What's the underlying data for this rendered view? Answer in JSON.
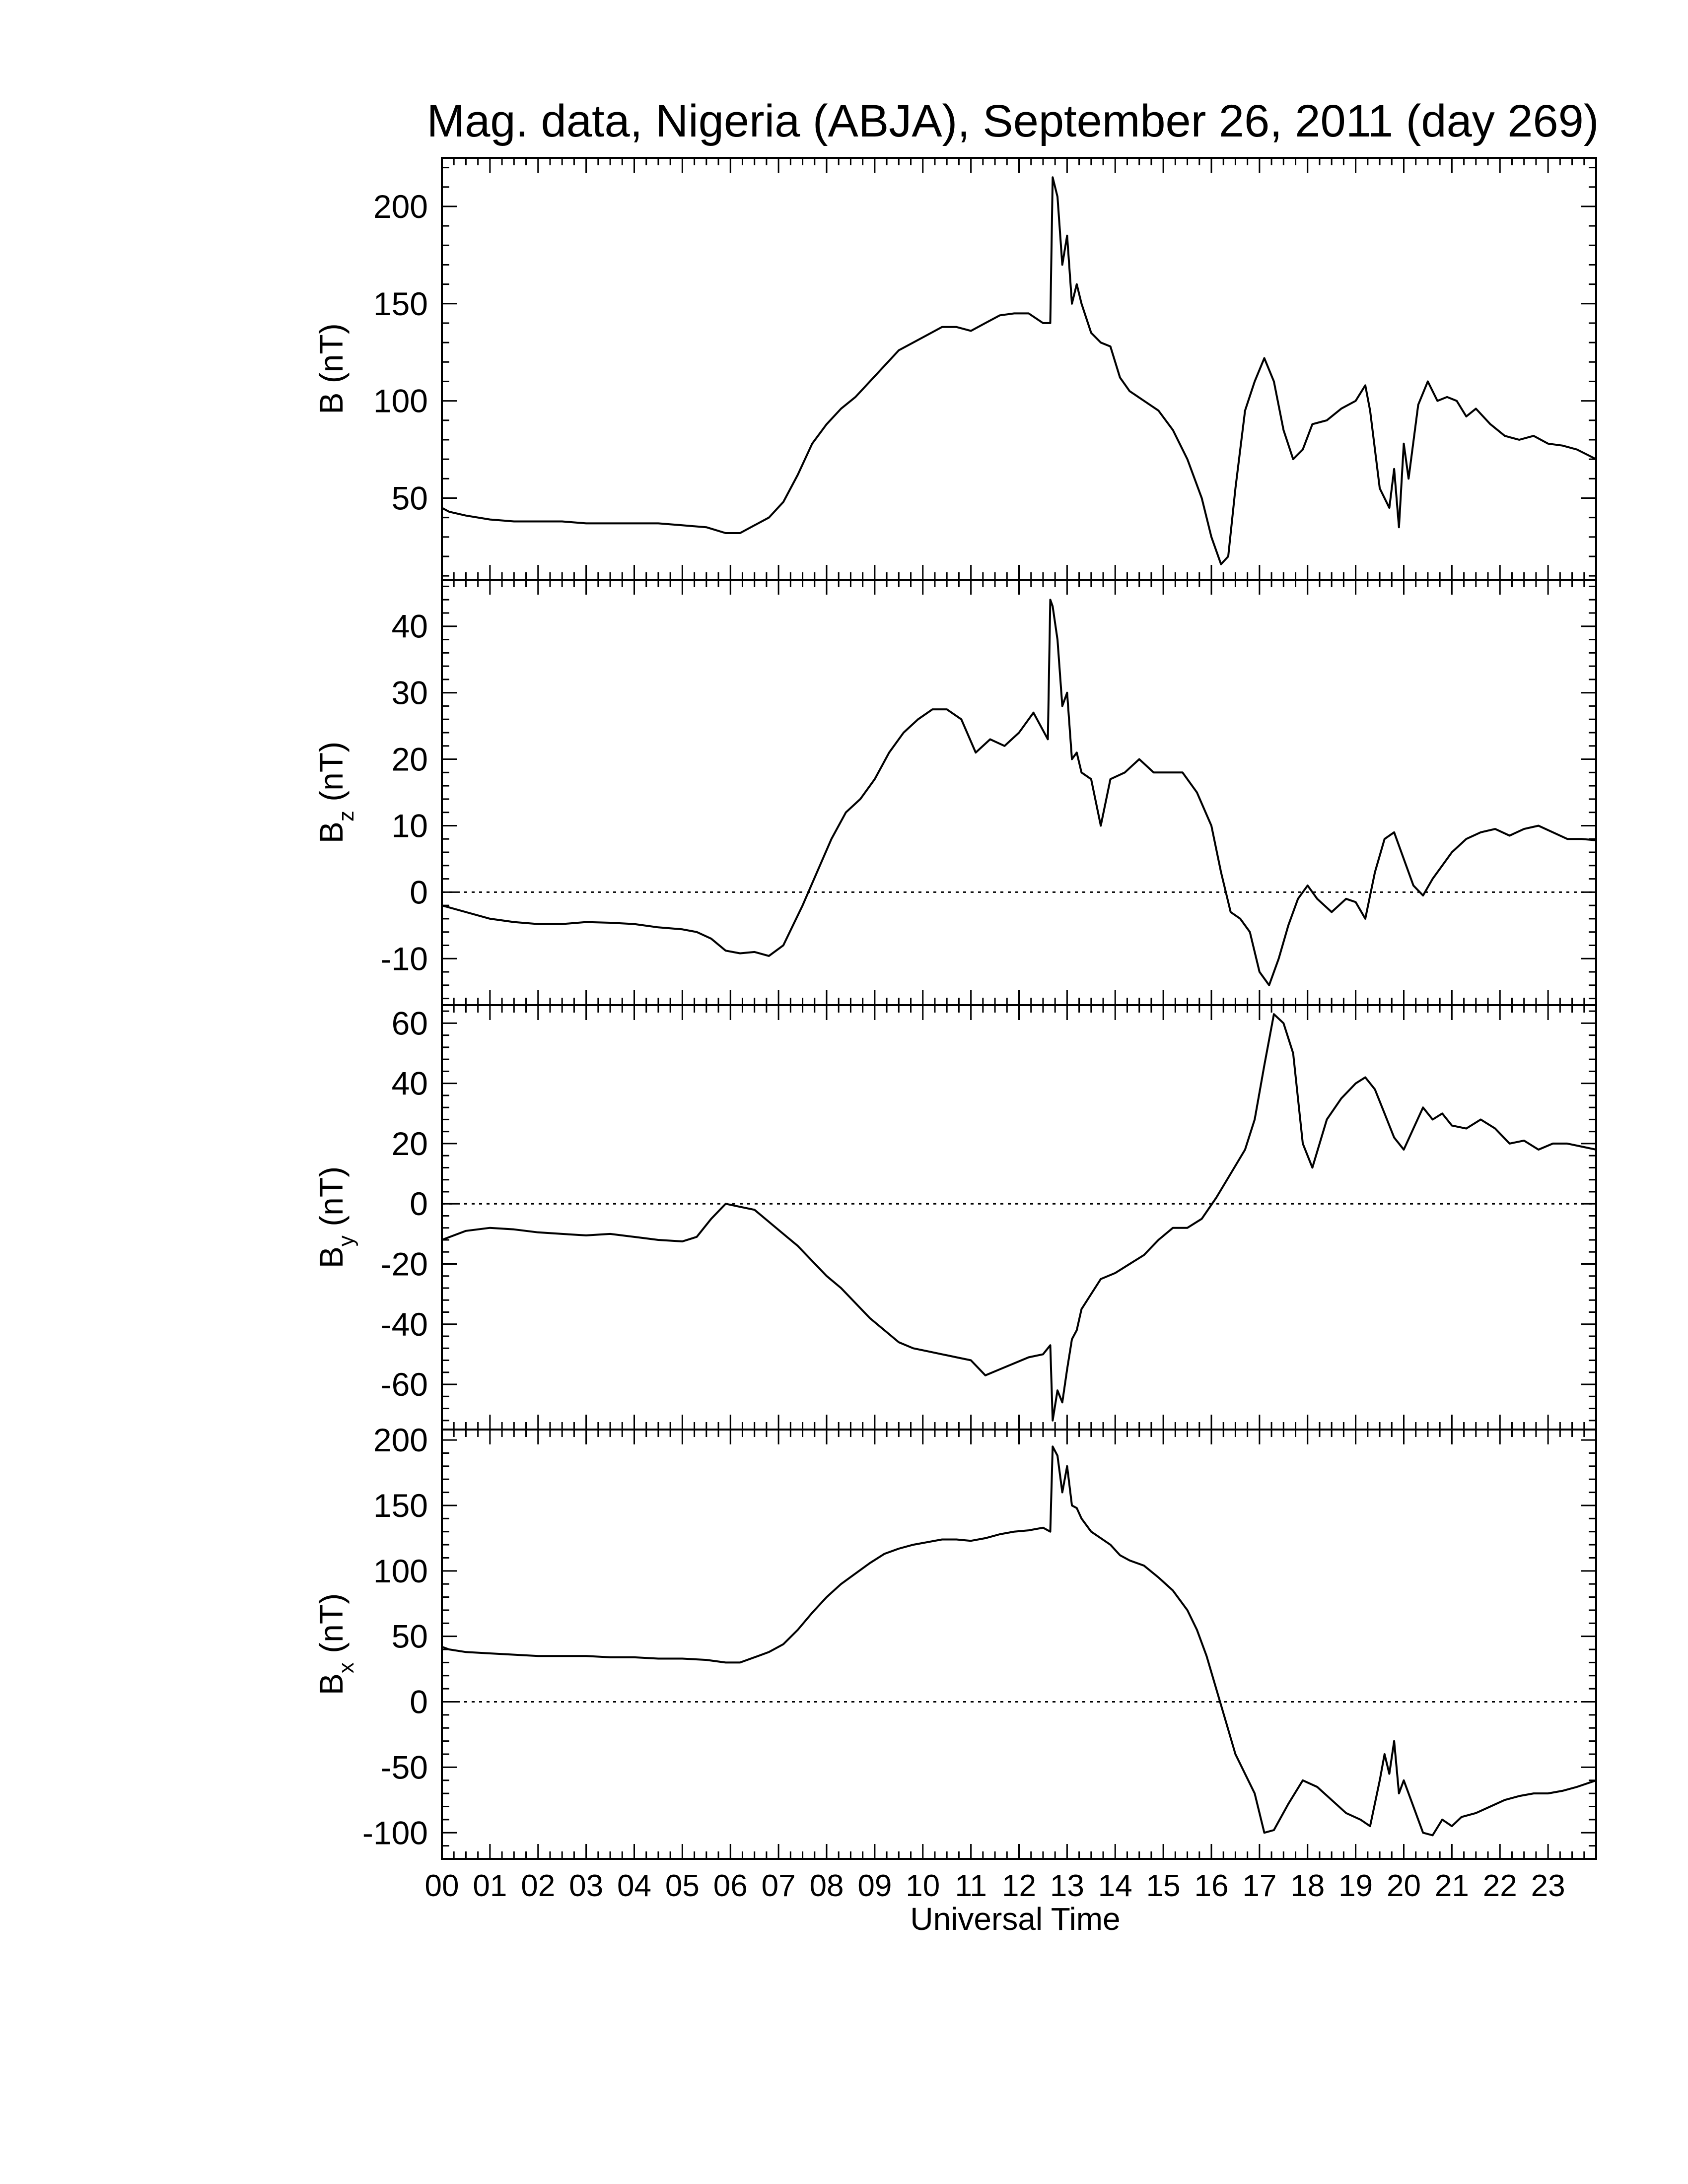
{
  "chart_data": {
    "type": "line",
    "title": "Mag. data, Nigeria (ABJA), September 26, 2011 (day 269)",
    "xlabel": "Universal Time",
    "xlim": [
      0,
      24
    ],
    "x_tick_labels": [
      "00",
      "01",
      "02",
      "03",
      "04",
      "05",
      "06",
      "07",
      "08",
      "09",
      "10",
      "11",
      "12",
      "13",
      "14",
      "15",
      "16",
      "17",
      "18",
      "19",
      "20",
      "21",
      "22",
      "23"
    ],
    "panels": [
      {
        "ylabel": "B (nT)",
        "ylabel_main": "B",
        "ylabel_sub": "",
        "ylabel_unit": "(nT)",
        "ylim": [
          8,
          225
        ],
        "yticks": [
          50,
          100,
          150,
          200
        ],
        "ytick_labels": [
          "50",
          "100",
          "150",
          "200"
        ],
        "zero_line": false,
        "x": [
          0,
          0.15,
          0.5,
          1,
          1.5,
          2,
          2.5,
          3,
          3.5,
          4,
          4.5,
          5,
          5.5,
          5.9,
          6.2,
          6.5,
          6.8,
          7.1,
          7.4,
          7.7,
          8.0,
          8.3,
          8.6,
          8.9,
          9.2,
          9.5,
          9.8,
          10.1,
          10.4,
          10.7,
          11.0,
          11.3,
          11.6,
          11.9,
          12.2,
          12.5,
          12.65,
          12.7,
          12.8,
          12.9,
          13.0,
          13.1,
          13.2,
          13.3,
          13.5,
          13.7,
          13.9,
          14.1,
          14.3,
          14.6,
          14.9,
          15.2,
          15.5,
          15.8,
          16.0,
          16.2,
          16.35,
          16.5,
          16.7,
          16.9,
          17.1,
          17.3,
          17.5,
          17.7,
          17.9,
          18.1,
          18.4,
          18.7,
          19.0,
          19.2,
          19.3,
          19.5,
          19.7,
          19.8,
          19.9,
          20.0,
          20.1,
          20.3,
          20.5,
          20.7,
          20.9,
          21.1,
          21.3,
          21.5,
          21.8,
          22.1,
          22.4,
          22.7,
          23.0,
          23.3,
          23.6,
          24.0
        ],
        "values": [
          45,
          43,
          41,
          39,
          38,
          38,
          38,
          37,
          37,
          37,
          37,
          36,
          35,
          32,
          32,
          36,
          40,
          48,
          62,
          78,
          88,
          96,
          102,
          110,
          118,
          126,
          130,
          134,
          138,
          138,
          136,
          140,
          144,
          145,
          145,
          140,
          140,
          215,
          205,
          170,
          185,
          150,
          160,
          150,
          135,
          130,
          128,
          112,
          105,
          100,
          95,
          85,
          70,
          50,
          30,
          16,
          20,
          55,
          95,
          110,
          122,
          110,
          85,
          70,
          75,
          88,
          90,
          96,
          100,
          108,
          95,
          55,
          45,
          65,
          35,
          78,
          60,
          98,
          110,
          100,
          102,
          100,
          92,
          96,
          88,
          82,
          80,
          82,
          78,
          77,
          75,
          70
        ]
      },
      {
        "ylabel": "Bz (nT)",
        "ylabel_main": "B",
        "ylabel_sub": "z",
        "ylabel_unit": "(nT)",
        "ylim": [
          -17,
          47
        ],
        "yticks": [
          -10,
          0,
          10,
          20,
          30,
          40
        ],
        "ytick_labels": [
          "-10",
          "0",
          "10",
          "20",
          "30",
          "40"
        ],
        "zero_line": true,
        "x": [
          0,
          0.5,
          1,
          1.5,
          2,
          2.5,
          3,
          3.5,
          4,
          4.5,
          5,
          5.3,
          5.6,
          5.9,
          6.2,
          6.5,
          6.8,
          7.1,
          7.3,
          7.5,
          7.8,
          8.1,
          8.4,
          8.7,
          9.0,
          9.3,
          9.6,
          9.9,
          10.2,
          10.5,
          10.8,
          11.1,
          11.4,
          11.7,
          12.0,
          12.3,
          12.6,
          12.65,
          12.7,
          12.8,
          12.9,
          13.0,
          13.1,
          13.2,
          13.3,
          13.5,
          13.7,
          13.9,
          14.2,
          14.5,
          14.8,
          15.1,
          15.4,
          15.7,
          16.0,
          16.2,
          16.4,
          16.6,
          16.8,
          17.0,
          17.2,
          17.4,
          17.6,
          17.8,
          18.0,
          18.2,
          18.5,
          18.8,
          19.0,
          19.2,
          19.4,
          19.6,
          19.8,
          20.0,
          20.2,
          20.4,
          20.6,
          20.8,
          21.0,
          21.3,
          21.6,
          21.9,
          22.2,
          22.5,
          22.8,
          23.1,
          23.4,
          23.7,
          24.0
        ],
        "values": [
          -2,
          -3,
          -4,
          -4.5,
          -4.8,
          -4.8,
          -4.5,
          -4.6,
          -4.8,
          -5.3,
          -5.6,
          -6,
          -7,
          -8.8,
          -9.2,
          -9,
          -9.6,
          -8,
          -5,
          -2,
          3,
          8,
          12,
          14,
          17,
          21,
          24,
          26,
          27.5,
          27.5,
          26,
          21,
          23,
          22,
          24,
          27,
          23,
          44,
          43,
          38,
          28,
          30,
          20,
          21,
          18,
          17,
          10,
          17,
          18,
          20,
          18,
          18,
          18,
          15,
          10,
          3,
          -3,
          -4,
          -6,
          -12,
          -14,
          -10,
          -5,
          -1,
          1,
          -1,
          -3,
          -1,
          -1.5,
          -4,
          3,
          8,
          9,
          5,
          1,
          -0.5,
          2,
          4,
          6,
          8,
          9,
          9.5,
          8.5,
          9.5,
          10,
          9,
          8,
          8,
          7.8
        ]
      },
      {
        "ylabel": "By (nT)",
        "ylabel_main": "B",
        "ylabel_sub": "y",
        "ylabel_unit": "(nT)",
        "ylim": [
          -75,
          66
        ],
        "yticks": [
          -60,
          -40,
          -20,
          0,
          20,
          40,
          60
        ],
        "ytick_labels": [
          "-60",
          "-40",
          "-20",
          "0",
          "20",
          "40",
          "60"
        ],
        "zero_line": true,
        "x": [
          0,
          0.5,
          1,
          1.5,
          2,
          2.5,
          3,
          3.5,
          4,
          4.5,
          5,
          5.3,
          5.6,
          5.9,
          6.2,
          6.5,
          6.8,
          7.1,
          7.4,
          7.7,
          8.0,
          8.3,
          8.6,
          8.9,
          9.2,
          9.5,
          9.8,
          10.1,
          10.4,
          10.7,
          11.0,
          11.3,
          11.6,
          11.9,
          12.2,
          12.5,
          12.6,
          12.65,
          12.7,
          12.8,
          12.9,
          13.0,
          13.1,
          13.2,
          13.3,
          13.5,
          13.7,
          14.0,
          14.3,
          14.6,
          14.9,
          15.2,
          15.5,
          15.8,
          16.1,
          16.4,
          16.7,
          16.9,
          17.1,
          17.3,
          17.5,
          17.7,
          17.9,
          18.1,
          18.4,
          18.7,
          19.0,
          19.2,
          19.4,
          19.6,
          19.8,
          20.0,
          20.2,
          20.4,
          20.6,
          20.8,
          21.0,
          21.3,
          21.6,
          21.9,
          22.2,
          22.5,
          22.8,
          23.1,
          23.4,
          23.7,
          24.0
        ],
        "values": [
          -12,
          -9,
          -8,
          -8.5,
          -9.5,
          -10,
          -10.5,
          -10,
          -11,
          -12,
          -12.5,
          -11,
          -5,
          0,
          -1,
          -2,
          -6,
          -10,
          -14,
          -19,
          -24,
          -28,
          -33,
          -38,
          -42,
          -46,
          -48,
          -49,
          -50,
          -51,
          -52,
          -57,
          -55,
          -53,
          -51,
          -50,
          -48,
          -47,
          -72,
          -62,
          -66,
          -55,
          -45,
          -42,
          -35,
          -30,
          -25,
          -23,
          -20,
          -17,
          -12,
          -8,
          -8,
          -5,
          2,
          10,
          18,
          28,
          46,
          63,
          60,
          50,
          20,
          12,
          28,
          35,
          40,
          42,
          38,
          30,
          22,
          18,
          25,
          32,
          28,
          30,
          26,
          25,
          28,
          25,
          20,
          21,
          18,
          20,
          20,
          19,
          18
        ]
      },
      {
        "ylabel": "Bx (nT)",
        "ylabel_main": "B",
        "ylabel_sub": "x",
        "ylabel_unit": "(nT)",
        "ylim": [
          -120,
          208
        ],
        "yticks": [
          -100,
          -50,
          0,
          50,
          100,
          150,
          200
        ],
        "ytick_labels": [
          "-100",
          "-50",
          "0",
          "50",
          "100",
          "150",
          "200"
        ],
        "zero_line": true,
        "x": [
          0,
          0.15,
          0.5,
          1,
          1.5,
          2,
          2.5,
          3,
          3.5,
          4,
          4.5,
          5,
          5.5,
          5.9,
          6.2,
          6.5,
          6.8,
          7.1,
          7.4,
          7.7,
          8.0,
          8.3,
          8.6,
          8.9,
          9.2,
          9.5,
          9.8,
          10.1,
          10.4,
          10.7,
          11.0,
          11.3,
          11.6,
          11.9,
          12.2,
          12.5,
          12.65,
          12.7,
          12.8,
          12.9,
          13.0,
          13.1,
          13.2,
          13.3,
          13.5,
          13.7,
          13.9,
          14.1,
          14.3,
          14.6,
          14.9,
          15.2,
          15.5,
          15.7,
          15.9,
          16.1,
          16.3,
          16.5,
          16.7,
          16.9,
          17.1,
          17.3,
          17.6,
          17.9,
          18.2,
          18.5,
          18.8,
          19.1,
          19.3,
          19.5,
          19.6,
          19.7,
          19.8,
          19.9,
          20.0,
          20.2,
          20.4,
          20.6,
          20.8,
          21.0,
          21.2,
          21.5,
          21.8,
          22.1,
          22.4,
          22.7,
          23.0,
          23.3,
          23.6,
          24.0
        ],
        "values": [
          42,
          40,
          38,
          37,
          36,
          35,
          35,
          35,
          34,
          34,
          33,
          33,
          32,
          30,
          30,
          34,
          38,
          44,
          55,
          68,
          80,
          90,
          98,
          106,
          113,
          117,
          120,
          122,
          124,
          124,
          123,
          125,
          128,
          130,
          131,
          133,
          130,
          195,
          188,
          160,
          180,
          150,
          148,
          140,
          130,
          125,
          120,
          112,
          108,
          104,
          95,
          85,
          70,
          55,
          35,
          10,
          -15,
          -40,
          -55,
          -70,
          -100,
          -98,
          -78,
          -60,
          -65,
          -75,
          -85,
          -90,
          -95,
          -60,
          -40,
          -55,
          -30,
          -70,
          -60,
          -80,
          -100,
          -102,
          -90,
          -95,
          -88,
          -85,
          -80,
          -75,
          -72,
          -70,
          -70,
          -68,
          -65,
          -60
        ]
      }
    ]
  }
}
